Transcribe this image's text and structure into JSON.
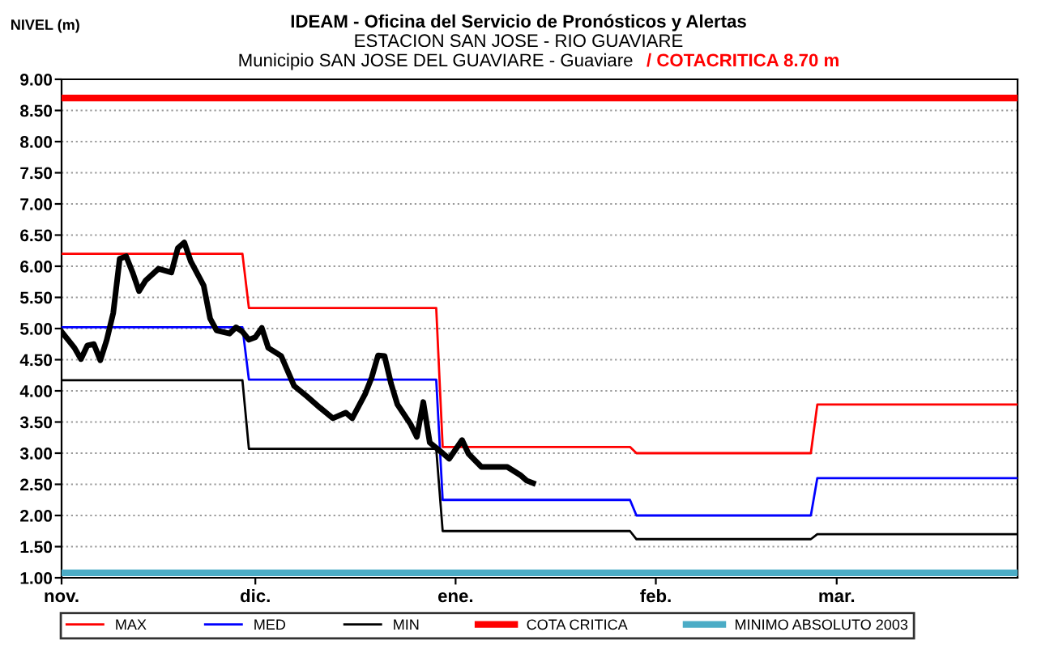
{
  "chart_data": {
    "type": "line",
    "title": "IDEAM - Oficina del Servicio de Pronósticos y Alertas",
    "subtitle": "ESTACION SAN JOSE - RIO GUAVIARE",
    "annotations": [
      "Municipio SAN JOSE DEL GUAVIARE - Guaviare",
      "/ COTACRITICA 8.70 m"
    ],
    "ylabel": "NIVEL (m)",
    "xlim": [
      "2002-11-01",
      "2003-03-29"
    ],
    "xticks": [
      {
        "value": "2002-11-01",
        "label": "nov."
      },
      {
        "value": "2002-12-01",
        "label": "dic."
      },
      {
        "value": "2003-01-01",
        "label": "ene."
      },
      {
        "value": "2003-02-01",
        "label": "feb."
      },
      {
        "value": "2003-03-01",
        "label": "mar."
      }
    ],
    "ylim": [
      1,
      9
    ],
    "yticks": [
      {
        "value": 1,
        "label": "1.00"
      },
      {
        "value": 1.5,
        "label": "1.50"
      },
      {
        "value": 2,
        "label": "2.00"
      },
      {
        "value": 2.5,
        "label": "2.50"
      },
      {
        "value": 3,
        "label": "3.00"
      },
      {
        "value": 3.5,
        "label": "3.50"
      },
      {
        "value": 4,
        "label": "4.00"
      },
      {
        "value": 4.5,
        "label": "4.50"
      },
      {
        "value": 5,
        "label": "5.00"
      },
      {
        "value": 5.5,
        "label": "5.50"
      },
      {
        "value": 6,
        "label": "6.00"
      },
      {
        "value": 6.5,
        "label": "6.50"
      },
      {
        "value": 7,
        "label": "7.00"
      },
      {
        "value": 7.5,
        "label": "7.50"
      },
      {
        "value": 8,
        "label": "8.00"
      },
      {
        "value": 8.5,
        "label": "8.50"
      },
      {
        "value": 9,
        "label": "9.00"
      }
    ],
    "grid": "y",
    "legend": "bottom",
    "series": [
      {
        "name": "MAX",
        "color": "#ff0000",
        "x": [
          "2002-11-01",
          "2002-11-29",
          "2002-11-30",
          "2002-12-29",
          "2002-12-30",
          "2003-01-28",
          "2003-01-29",
          "2003-02-25",
          "2003-02-26",
          "2003-03-29"
        ],
        "values": [
          6.2,
          6.2,
          5.33,
          5.33,
          3.1,
          3.1,
          3.0,
          3.0,
          3.78,
          3.78
        ]
      },
      {
        "name": "MED",
        "color": "#0000ff",
        "x": [
          "2002-11-01",
          "2002-11-29",
          "2002-11-30",
          "2002-12-29",
          "2002-12-30",
          "2003-01-28",
          "2003-01-29",
          "2003-02-25",
          "2003-02-26",
          "2003-03-29"
        ],
        "values": [
          5.02,
          5.02,
          4.18,
          4.18,
          2.25,
          2.25,
          2.0,
          2.0,
          2.6,
          2.6
        ]
      },
      {
        "name": "MIN",
        "color": "#000000",
        "x": [
          "2002-11-01",
          "2002-11-29",
          "2002-11-30",
          "2002-12-29",
          "2002-12-30",
          "2003-01-28",
          "2003-01-29",
          "2003-02-25",
          "2003-02-26",
          "2003-03-29"
        ],
        "values": [
          4.17,
          4.17,
          3.07,
          3.07,
          1.75,
          1.75,
          1.62,
          1.62,
          1.7,
          1.7
        ]
      },
      {
        "name": "COTA CRITICA",
        "color": "#ff0000",
        "x": [
          "2002-11-01",
          "2003-03-29"
        ],
        "values": [
          8.7,
          8.7
        ]
      },
      {
        "name": "MINIMO ABSOLUTO 2003",
        "color": "#4bacc6",
        "x": [
          "2002-11-01",
          "2003-03-29"
        ],
        "values": [
          1.08,
          1.08
        ]
      },
      {
        "color": "#000000",
        "x": [
          "2002-11-01",
          "2002-11-02",
          "2002-11-03",
          "2002-11-04",
          "2002-11-05",
          "2002-11-06",
          "2002-11-07",
          "2002-11-08",
          "2002-11-09",
          "2002-11-10",
          "2002-11-11",
          "2002-11-12",
          "2002-11-13",
          "2002-11-14",
          "2002-11-16",
          "2002-11-18",
          "2002-11-19",
          "2002-11-20",
          "2002-11-21",
          "2002-11-23",
          "2002-11-24",
          "2002-11-25",
          "2002-11-27",
          "2002-11-28",
          "2002-11-29",
          "2002-11-30",
          "2002-12-01",
          "2002-12-02",
          "2002-12-03",
          "2002-12-05",
          "2002-12-07",
          "2002-12-09",
          "2002-12-11",
          "2002-12-13",
          "2002-12-15",
          "2002-12-16",
          "2002-12-18",
          "2002-12-19",
          "2002-12-20",
          "2002-12-21",
          "2002-12-22",
          "2002-12-23",
          "2002-12-25",
          "2002-12-26",
          "2002-12-27",
          "2002-12-28",
          "2002-12-30",
          "2002-12-31",
          "2003-01-02",
          "2003-01-03",
          "2003-01-05",
          "2003-01-07",
          "2003-01-09",
          "2003-01-11",
          "2003-01-12",
          "2003-01-13"
        ],
        "values": [
          4.95,
          4.82,
          4.69,
          4.51,
          4.73,
          4.75,
          4.49,
          4.82,
          5.25,
          6.12,
          6.16,
          5.9,
          5.6,
          5.77,
          5.96,
          5.9,
          6.29,
          6.38,
          6.08,
          5.69,
          5.16,
          4.97,
          4.92,
          5.02,
          4.95,
          4.82,
          4.86,
          5.01,
          4.69,
          4.56,
          4.08,
          3.91,
          3.73,
          3.56,
          3.65,
          3.56,
          3.95,
          4.21,
          4.57,
          4.56,
          4.12,
          3.78,
          3.47,
          3.26,
          3.82,
          3.17,
          3.0,
          2.91,
          3.21,
          2.99,
          2.78,
          2.78,
          2.78,
          2.65,
          2.56,
          2.52
        ]
      }
    ]
  }
}
